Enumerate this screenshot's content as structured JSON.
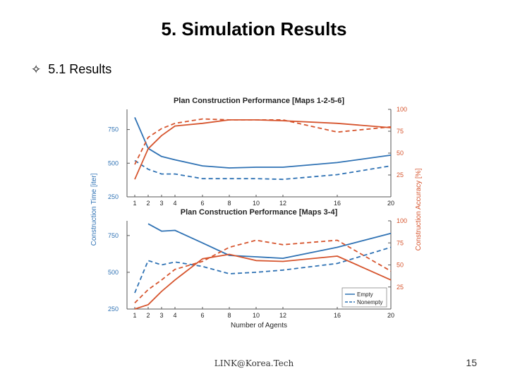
{
  "slide": {
    "title": "5. Simulation Results",
    "bullet_icon": "four-point-star-outline",
    "bullet_text": "5.1 Results",
    "footer": "LINK@Korea.Tech",
    "page_number": "15"
  },
  "colors": {
    "blue": "#2f72b4",
    "orange": "#d6542d"
  },
  "chart_data": [
    {
      "type": "line",
      "title": "Plan Construction Performance [Maps 1-2-5-6]",
      "x": [
        1,
        2,
        3,
        4,
        6,
        8,
        10,
        12,
        16,
        20
      ],
      "x_ticks": [
        "1",
        "2",
        "3",
        "4",
        "6",
        "8",
        "10",
        "12",
        "16",
        "20"
      ],
      "ylabel": "Construction Time [iter]",
      "ylim": [
        250,
        900
      ],
      "y_ticks": [
        "250",
        "500",
        "750"
      ],
      "y2label": "Construction Accuracy [%]",
      "y2lim": [
        0,
        100
      ],
      "y2_ticks": [
        "25",
        "50",
        "75",
        "100"
      ],
      "series": [
        {
          "axis": "left",
          "metric": "time",
          "style": "solid",
          "color": "blue",
          "values": [
            840,
            610,
            550,
            525,
            480,
            465,
            470,
            470,
            505,
            560
          ]
        },
        {
          "axis": "left",
          "metric": "time",
          "style": "dashed",
          "color": "blue",
          "values": [
            520,
            455,
            420,
            420,
            385,
            385,
            385,
            380,
            415,
            480
          ]
        },
        {
          "axis": "right",
          "metric": "accuracy",
          "style": "solid",
          "color": "orange",
          "values": [
            20,
            55,
            70,
            81,
            84,
            88,
            88,
            87,
            84,
            79
          ]
        },
        {
          "axis": "right",
          "metric": "accuracy",
          "style": "dashed",
          "color": "orange",
          "values": [
            37,
            68,
            78,
            84,
            89,
            88,
            88,
            88,
            74,
            80
          ]
        }
      ]
    },
    {
      "type": "line",
      "title": "Plan Construction Performance [Maps 3-4]",
      "x": [
        1,
        2,
        3,
        4,
        6,
        8,
        10,
        12,
        16,
        20
      ],
      "x_ticks": [
        "1",
        "2",
        "3",
        "4",
        "6",
        "8",
        "10",
        "12",
        "16",
        "20"
      ],
      "xlabel": "Number of Agents",
      "ylabel": "Construction Time [iter]",
      "ylim": [
        250,
        850
      ],
      "y_ticks": [
        "250",
        "500",
        "750"
      ],
      "y2label": "Construction Accuracy [%]",
      "y2lim": [
        0,
        100
      ],
      "y2_ticks": [
        "25",
        "50",
        "75",
        "100"
      ],
      "legend": {
        "position": "bottom-right",
        "entries": [
          "Empty",
          "Nonempty"
        ]
      },
      "series": [
        {
          "name": "Empty",
          "axis": "left",
          "metric": "time",
          "style": "solid",
          "color": "blue",
          "values": [
            null,
            830,
            780,
            785,
            700,
            615,
            605,
            595,
            670,
            765
          ]
        },
        {
          "name": "Nonempty",
          "axis": "left",
          "metric": "time",
          "style": "dashed",
          "color": "blue",
          "values": [
            360,
            580,
            550,
            570,
            540,
            490,
            500,
            515,
            560,
            670
          ]
        },
        {
          "axis": "right",
          "metric": "accuracy",
          "style": "solid",
          "color": "orange",
          "values": [
            0,
            5,
            20,
            33,
            57,
            62,
            55,
            54,
            60,
            33
          ]
        },
        {
          "axis": "right",
          "metric": "accuracy",
          "style": "dashed",
          "color": "orange",
          "values": [
            7,
            22,
            33,
            45,
            54,
            70,
            78,
            73,
            78,
            43
          ]
        }
      ]
    }
  ]
}
